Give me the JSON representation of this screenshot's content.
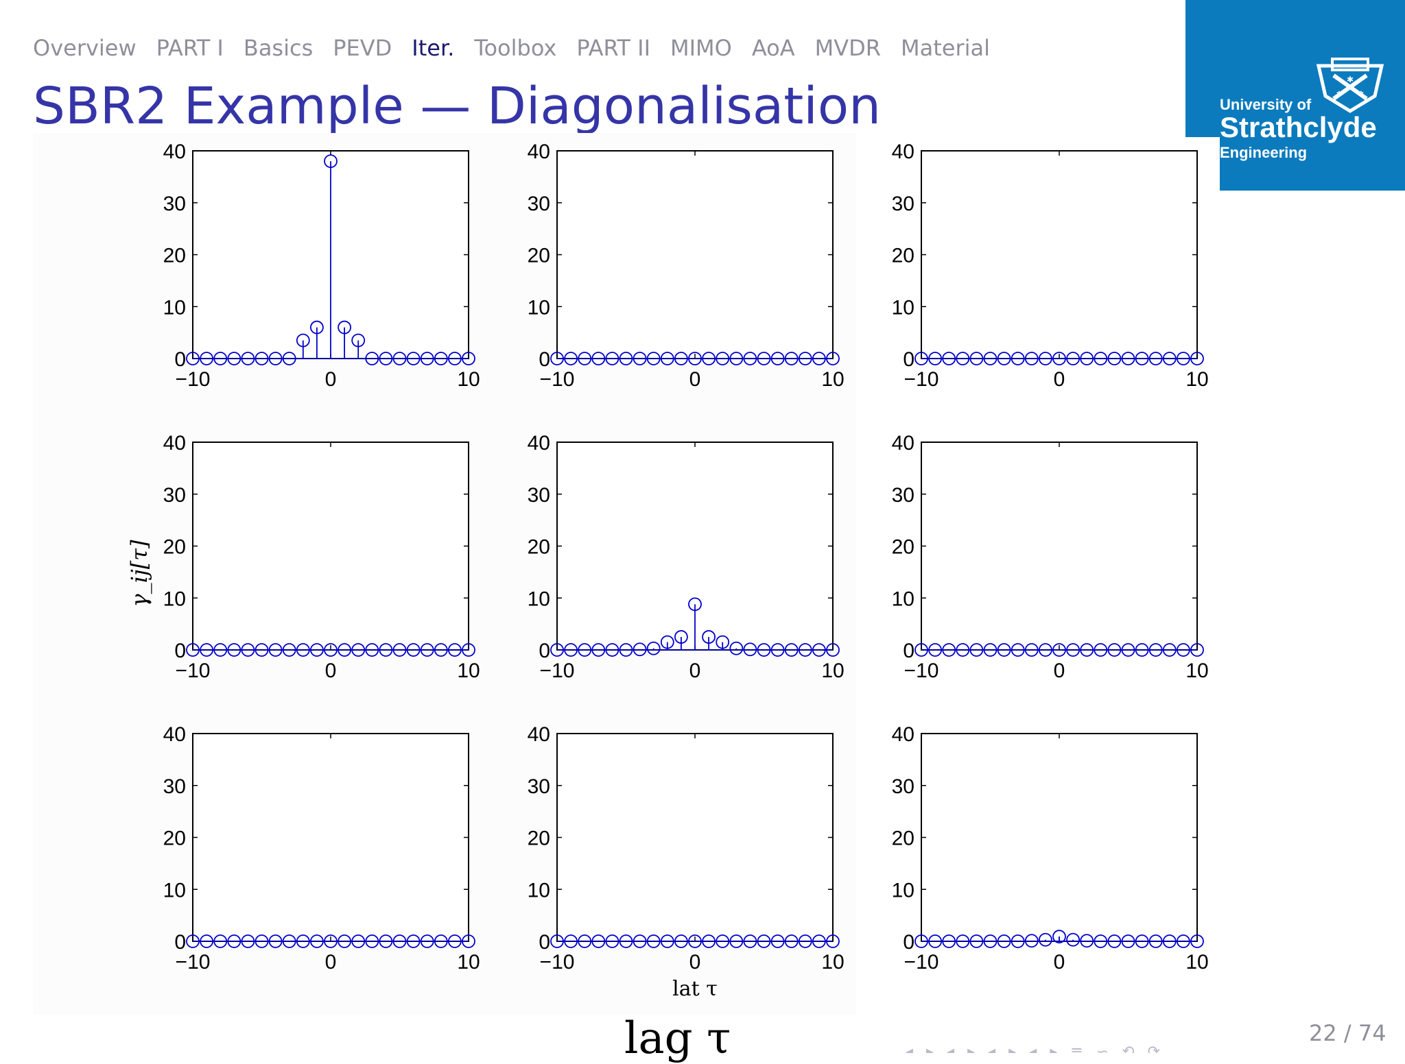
{
  "nav": {
    "items": [
      "Overview",
      "PART I",
      "Basics",
      "PEVD",
      "Iter.",
      "Toolbox",
      "PART II",
      "MIMO",
      "AoA",
      "MVDR",
      "Material"
    ],
    "active_index": 4
  },
  "slide": {
    "title": "SBR2 Example — Diagonalisation",
    "big_xlabel": "lag τ",
    "page": "22 / 74",
    "beamer_nav_glyphs": "◂ ▸ ◂ ▸ ◂ ▸ ◂ ▸ ≡ ∽ ⟲ ⟳"
  },
  "logo": {
    "line1": "University of",
    "line2": "Strathclyde",
    "line3": "Engineering",
    "bg_color": "#0b7bbd"
  },
  "colors": {
    "stem": "#0000cc",
    "nav_active": "#1a1a6e",
    "nav": "#8f8f9b",
    "title": "#3535a8"
  },
  "chart_data": {
    "type": "stem",
    "grid": "3x3",
    "xlabel": "lat τ",
    "ylabel": "γ_ij[τ]",
    "xlim": [
      -10,
      10
    ],
    "ylim": [
      0,
      40
    ],
    "xticks": [
      -10,
      0,
      10
    ],
    "xtick_labels": [
      "−10",
      "0",
      "10"
    ],
    "yticks": [
      0,
      10,
      20,
      30,
      40
    ],
    "x": [
      -10,
      -9,
      -8,
      -7,
      -6,
      -5,
      -4,
      -3,
      -2,
      -1,
      0,
      1,
      2,
      3,
      4,
      5,
      6,
      7,
      8,
      9,
      10
    ],
    "panels": [
      {
        "row": 1,
        "col": 1,
        "values": [
          0,
          0,
          0,
          0,
          0,
          0,
          0,
          0,
          3.5,
          6,
          38,
          6,
          3.5,
          0,
          0,
          0,
          0,
          0,
          0,
          0,
          0
        ]
      },
      {
        "row": 1,
        "col": 2,
        "values": [
          0,
          0,
          0,
          0,
          0,
          0,
          0,
          0,
          0,
          0,
          0,
          0,
          0,
          0,
          0,
          0,
          0,
          0,
          0,
          0,
          0
        ]
      },
      {
        "row": 1,
        "col": 3,
        "values": [
          0,
          0,
          0,
          0,
          0,
          0,
          0,
          0,
          0,
          0,
          0,
          0,
          0,
          0,
          0,
          0,
          0,
          0,
          0,
          0,
          0
        ]
      },
      {
        "row": 2,
        "col": 1,
        "values": [
          0,
          0,
          0,
          0,
          0,
          0,
          0,
          0,
          0,
          0,
          0,
          0,
          0,
          0,
          0,
          0,
          0,
          0,
          0,
          0,
          0
        ]
      },
      {
        "row": 2,
        "col": 2,
        "values": [
          0,
          0,
          0,
          0,
          0,
          0,
          0.1,
          0.3,
          1.5,
          2.5,
          8.8,
          2.5,
          1.5,
          0.3,
          0.1,
          0,
          0,
          0,
          0,
          0,
          0
        ]
      },
      {
        "row": 2,
        "col": 3,
        "values": [
          0,
          0,
          0,
          0,
          0,
          0,
          0,
          0,
          0,
          0,
          0,
          0,
          0,
          0,
          0,
          0,
          0,
          0,
          0,
          0,
          0
        ]
      },
      {
        "row": 3,
        "col": 1,
        "values": [
          0,
          0,
          0,
          0,
          0,
          0,
          0,
          0,
          0,
          0,
          0,
          0,
          0,
          0,
          0,
          0,
          0,
          0,
          0,
          0,
          0
        ]
      },
      {
        "row": 3,
        "col": 2,
        "values": [
          0,
          0,
          0,
          0,
          0,
          0,
          0,
          0,
          0,
          0,
          0,
          0,
          0,
          0,
          0,
          0,
          0,
          0,
          0,
          0,
          0
        ]
      },
      {
        "row": 3,
        "col": 3,
        "values": [
          0,
          0,
          0,
          0,
          0,
          0,
          0,
          0,
          0.1,
          0.3,
          0.9,
          0.3,
          0.1,
          0,
          0,
          0,
          0,
          0,
          0,
          0,
          0
        ]
      }
    ]
  }
}
